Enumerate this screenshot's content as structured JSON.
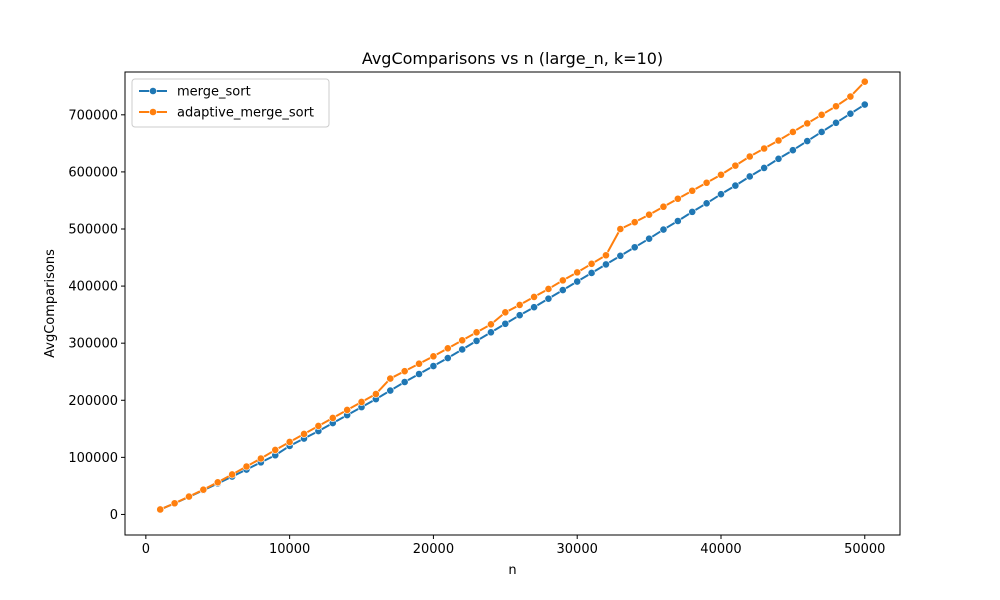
{
  "chart_data": {
    "type": "line",
    "title": "AvgComparisons vs n (large_n, k=10)",
    "xlabel": "n",
    "ylabel": "AvgComparisons",
    "xlim": [
      -1450,
      52450
    ],
    "ylim": [
      -36000,
      775000
    ],
    "xticks": [
      0,
      10000,
      20000,
      30000,
      40000,
      50000
    ],
    "xtick_labels": [
      "0",
      "10000",
      "20000",
      "30000",
      "40000",
      "50000"
    ],
    "yticks": [
      0,
      100000,
      200000,
      300000,
      400000,
      500000,
      600000,
      700000
    ],
    "ytick_labels": [
      "0",
      "100000",
      "200000",
      "300000",
      "400000",
      "500000",
      "600000",
      "700000"
    ],
    "grid": false,
    "legend_position": "top-left",
    "x": [
      1000,
      2000,
      3000,
      4000,
      5000,
      6000,
      7000,
      8000,
      9000,
      10000,
      11000,
      12000,
      13000,
      14000,
      15000,
      16000,
      17000,
      18000,
      19000,
      20000,
      21000,
      22000,
      23000,
      24000,
      25000,
      26000,
      27000,
      28000,
      29000,
      30000,
      31000,
      32000,
      33000,
      34000,
      35000,
      36000,
      37000,
      38000,
      39000,
      40000,
      41000,
      42000,
      43000,
      44000,
      45000,
      46000,
      47000,
      48000,
      49000,
      50000
    ],
    "series": [
      {
        "name": "merge_sort",
        "color": "#1f77b4",
        "values": [
          8700,
          19400,
          30800,
          42400,
          54300,
          66400,
          78700,
          91200,
          103700,
          120000,
          133000,
          146000,
          160000,
          174000,
          188000,
          202000,
          217000,
          232000,
          246000,
          260000,
          274000,
          289000,
          304000,
          319000,
          334000,
          349000,
          363000,
          378000,
          393000,
          408000,
          423000,
          438000,
          453000,
          468000,
          483000,
          499000,
          514000,
          530000,
          545000,
          561000,
          576000,
          592000,
          607000,
          623000,
          638000,
          654000,
          670000,
          686000,
          702000,
          718000
        ]
      },
      {
        "name": "adaptive_merge_sort",
        "color": "#ff7f0e",
        "values": [
          8700,
          19600,
          31300,
          43400,
          56300,
          70000,
          84000,
          98000,
          113000,
          127000,
          141000,
          155000,
          169000,
          183000,
          197000,
          211000,
          238000,
          251000,
          264000,
          277000,
          291000,
          305000,
          319000,
          333000,
          354000,
          367000,
          381000,
          395000,
          410000,
          424000,
          439000,
          454000,
          500000,
          512000,
          525000,
          539000,
          553000,
          567000,
          581000,
          595000,
          611000,
          627000,
          641000,
          655000,
          670000,
          685000,
          700000,
          715000,
          732000,
          758000
        ]
      }
    ]
  }
}
